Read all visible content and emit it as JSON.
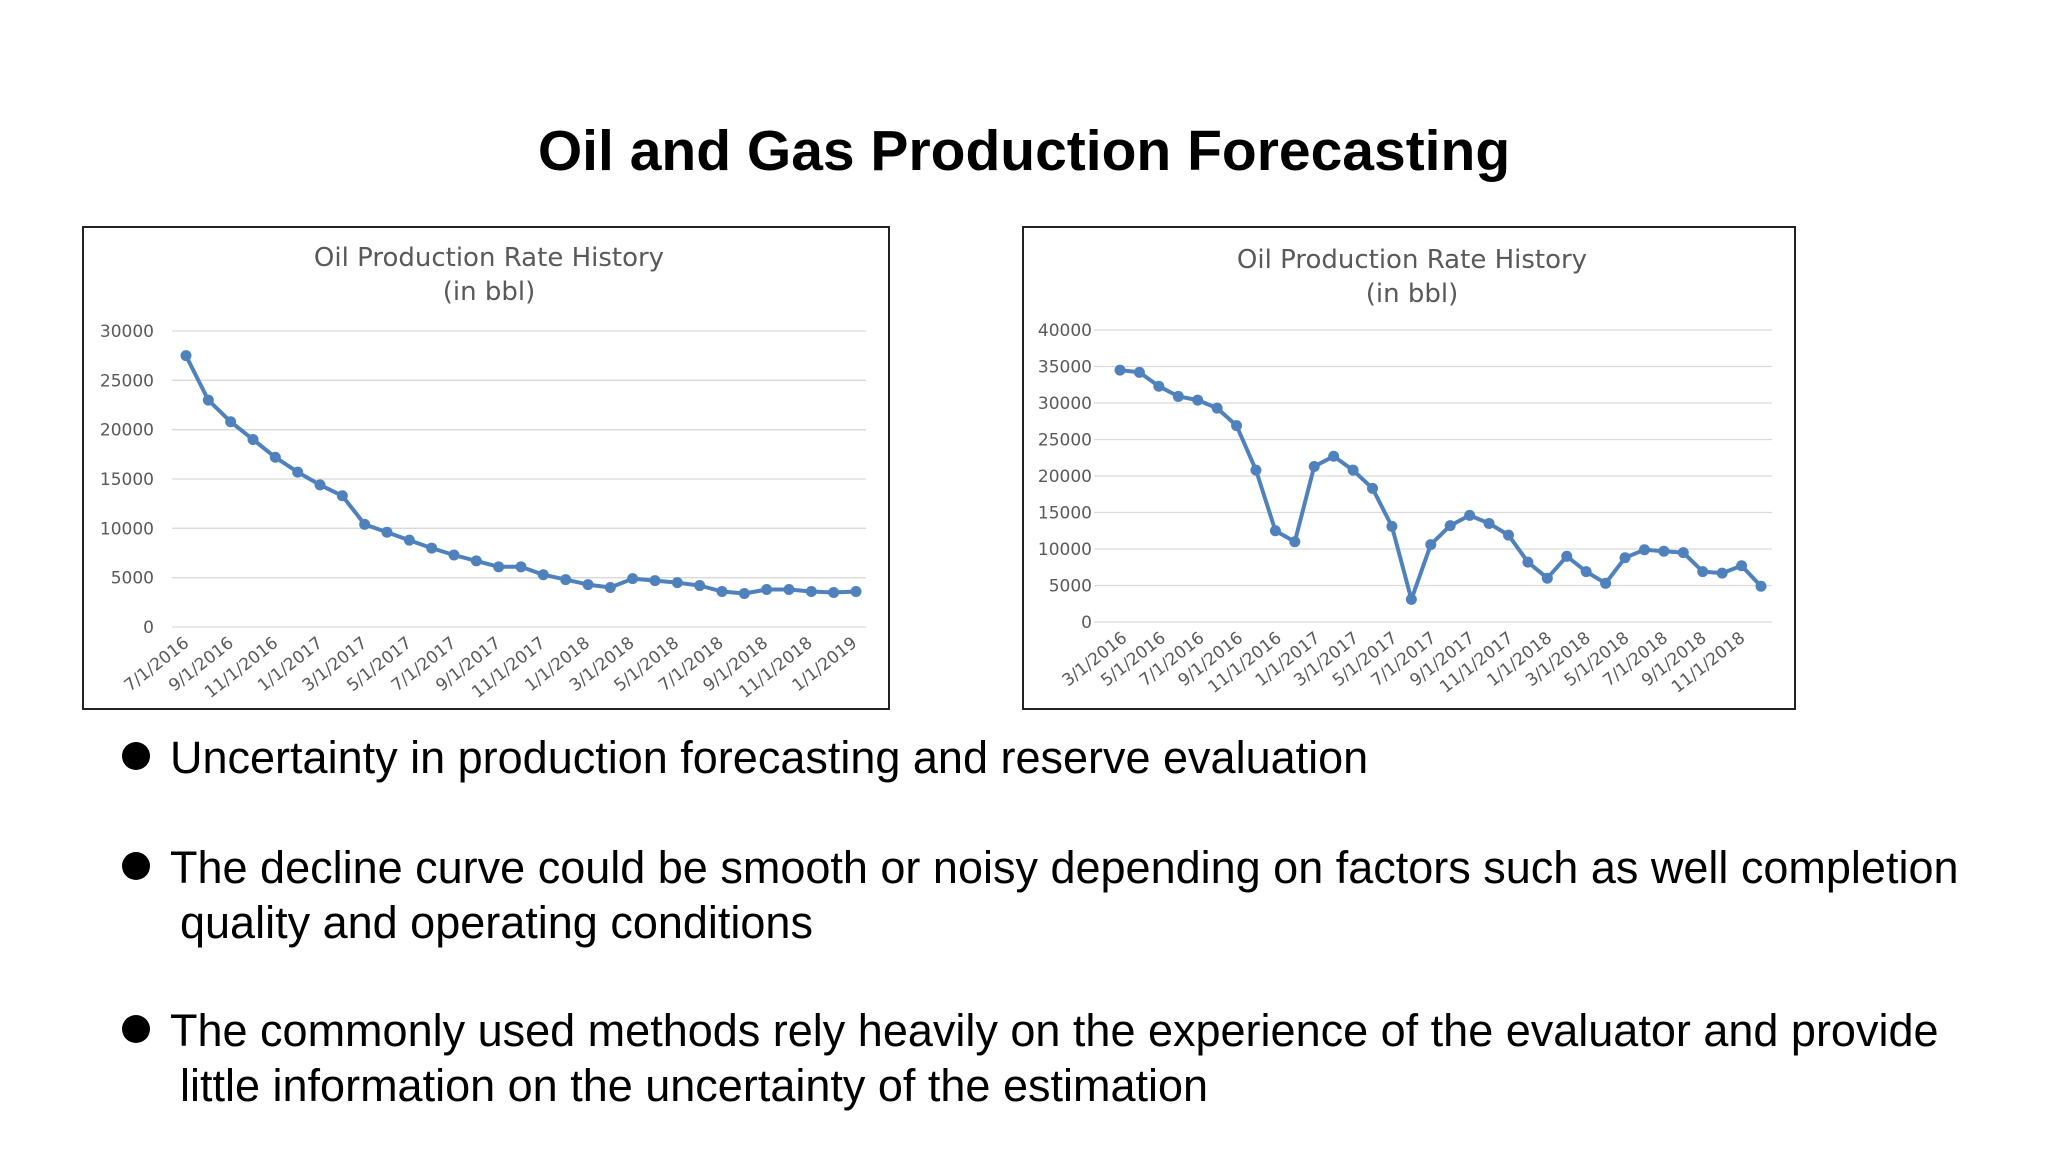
{
  "slide": {
    "title": "Oil and Gas Production Forecasting",
    "bullets": [
      {
        "line1": "Uncertainty in production forecasting and reserve evaluation",
        "line2": ""
      },
      {
        "line1": "The decline curve could be smooth or noisy depending on factors such as well completion",
        "line2": "quality and operating conditions"
      },
      {
        "line1": "The commonly used methods rely heavily on the experience of the evaluator and provide",
        "line2": "little information on the uncertainty of the estimation"
      }
    ]
  },
  "chart_data": [
    {
      "type": "line",
      "title": "Oil Production Rate History",
      "subtitle": "(in bbl)",
      "ylim": [
        0,
        30000
      ],
      "yticks": [
        0,
        5000,
        10000,
        15000,
        20000,
        25000,
        30000
      ],
      "x_tick_labels": [
        "7/1/2016",
        "9/1/2016",
        "11/1/2016",
        "1/1/2017",
        "3/1/2017",
        "5/1/2017",
        "7/1/2017",
        "9/1/2017",
        "11/1/2017",
        "1/1/2018",
        "3/1/2018",
        "5/1/2018",
        "7/1/2018",
        "9/1/2018",
        "11/1/2018",
        "1/1/2019"
      ],
      "grid": true,
      "color": "#4F81BD",
      "series": [
        {
          "values": [
            27500,
            23000,
            20800,
            19000,
            17200,
            15700,
            14400,
            13300,
            10400,
            9600,
            8800,
            8000,
            7300,
            6700,
            6100,
            6100,
            5300,
            4800,
            4300,
            4000,
            4900,
            4700,
            4500,
            4200,
            3600,
            3400,
            3800,
            3800,
            3600,
            3500,
            3600
          ]
        }
      ]
    },
    {
      "type": "line",
      "title": "Oil Production Rate History",
      "subtitle": "(in bbl)",
      "ylim": [
        0,
        40000
      ],
      "yticks": [
        0,
        5000,
        10000,
        15000,
        20000,
        25000,
        30000,
        35000,
        40000
      ],
      "x_tick_labels": [
        "3/1/2016",
        "5/1/2016",
        "7/1/2016",
        "9/1/2016",
        "11/1/2016",
        "1/1/2017",
        "3/1/2017",
        "5/1/2017",
        "7/1/2017",
        "9/1/2017",
        "11/1/2017",
        "1/1/2018",
        "3/1/2018",
        "5/1/2018",
        "7/1/2018",
        "9/1/2018",
        "11/1/2018"
      ],
      "grid": true,
      "color": "#4F81BD",
      "series": [
        {
          "values": [
            34500,
            34200,
            32300,
            30900,
            30400,
            29300,
            26900,
            20800,
            12500,
            11000,
            21300,
            22700,
            20800,
            18300,
            13100,
            3100,
            10600,
            13200,
            14600,
            13500,
            11900,
            8200,
            6000,
            9000,
            6900,
            5300,
            8800,
            9900,
            9700,
            9500,
            6900,
            6700,
            7700,
            4900
          ]
        }
      ]
    }
  ]
}
